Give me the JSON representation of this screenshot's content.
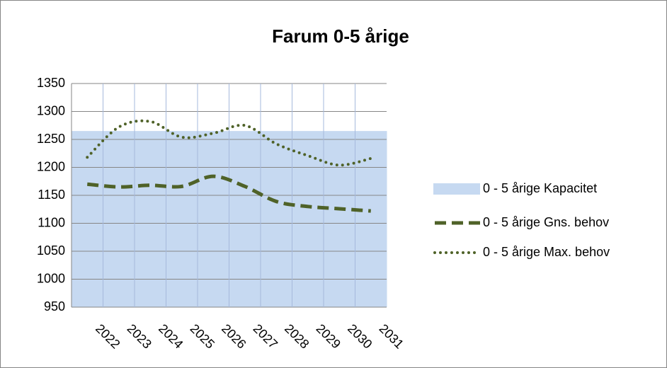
{
  "chart_data": {
    "type": "line",
    "title": "Farum 0-5 årige",
    "categories": [
      "2022",
      "2023",
      "2024",
      "2025",
      "2026",
      "2027",
      "2028",
      "2029",
      "2030",
      "2031"
    ],
    "series": [
      {
        "name": "0 - 5 årige Kapacitet",
        "style": "area",
        "color": "#c6d9f1",
        "values": [
          1265,
          1265,
          1265,
          1265,
          1265,
          1265,
          1265,
          1265,
          1265,
          1265
        ]
      },
      {
        "name": "0 - 5 årige Gns. behov",
        "style": "dashed",
        "color": "#4f6228",
        "values": [
          1170,
          1165,
          1168,
          1166,
          1184,
          1166,
          1139,
          1130,
          1126,
          1122
        ]
      },
      {
        "name": "0 - 5 årige Max. behov",
        "style": "dotted",
        "color": "#4f6228",
        "values": [
          1218,
          1272,
          1282,
          1254,
          1261,
          1275,
          1242,
          1221,
          1204,
          1216
        ]
      }
    ],
    "ylim": [
      950,
      1350
    ],
    "yticks": [
      950,
      1000,
      1050,
      1100,
      1150,
      1200,
      1250,
      1300,
      1350
    ],
    "grid": true
  }
}
